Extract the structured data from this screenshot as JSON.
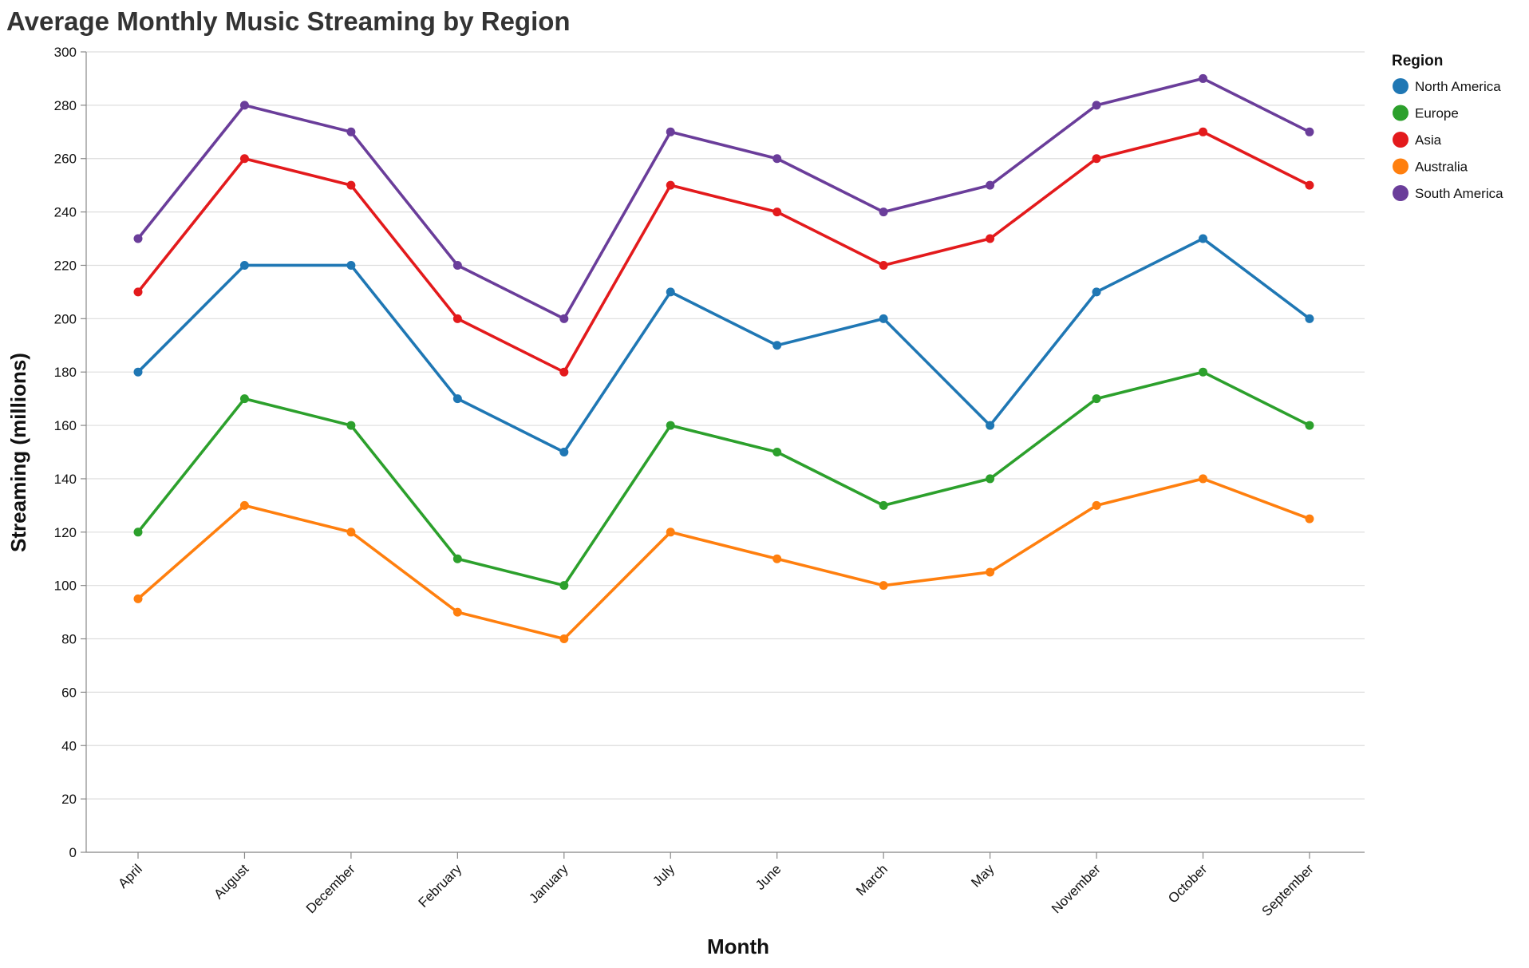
{
  "chart_data": {
    "type": "line",
    "title": "Average Monthly Music Streaming by Region",
    "xlabel": "Month",
    "ylabel": "Streaming (millions)",
    "ylim": [
      0,
      300
    ],
    "yticks": [
      0,
      20,
      40,
      60,
      80,
      100,
      120,
      140,
      160,
      180,
      200,
      220,
      240,
      260,
      280,
      300
    ],
    "grid": true,
    "legend_position": "top-right",
    "legend_title": "Region",
    "categories": [
      "April",
      "August",
      "December",
      "February",
      "January",
      "July",
      "June",
      "March",
      "May",
      "November",
      "October",
      "September"
    ],
    "series": [
      {
        "name": "North America",
        "color": "#1f77b4",
        "values": [
          180,
          220,
          220,
          170,
          150,
          210,
          190,
          200,
          160,
          210,
          230,
          200
        ]
      },
      {
        "name": "Europe",
        "color": "#2ca02c",
        "values": [
          120,
          170,
          160,
          110,
          100,
          160,
          150,
          130,
          140,
          170,
          180,
          160
        ]
      },
      {
        "name": "Asia",
        "color": "#e31a1c",
        "values": [
          210,
          260,
          250,
          200,
          180,
          250,
          240,
          220,
          230,
          260,
          270,
          250
        ]
      },
      {
        "name": "Australia",
        "color": "#ff7f0e",
        "values": [
          95,
          130,
          120,
          90,
          80,
          120,
          110,
          100,
          105,
          130,
          140,
          125
        ]
      },
      {
        "name": "South America",
        "color": "#6a3d9a",
        "values": [
          230,
          280,
          270,
          220,
          200,
          270,
          260,
          240,
          250,
          280,
          290,
          270
        ]
      }
    ]
  }
}
